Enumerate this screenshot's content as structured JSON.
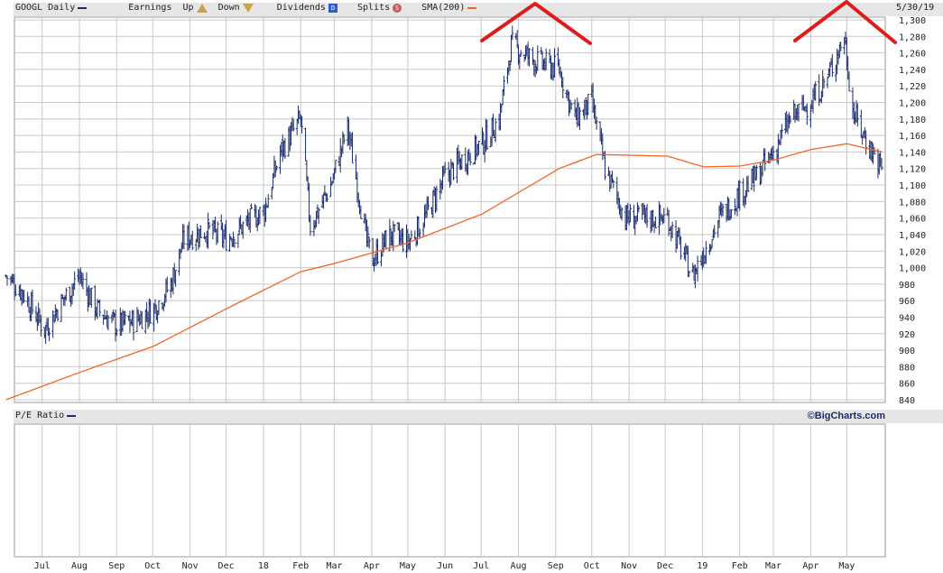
{
  "header": {
    "symbol": "GOOGL Daily",
    "earnings_label": "Earnings",
    "up_label": "Up",
    "down_label": "Down",
    "dividends_label": "Dividends",
    "splits_label": "Splits",
    "sma_label": "SMA(200)",
    "date": "5/30/19",
    "up_icon": "up-triangle-icon",
    "down_icon": "down-triangle-icon",
    "dividend_icon": "D",
    "split_icon": "S"
  },
  "pe_panel": {
    "label": "P/E Ratio"
  },
  "credit": "©BigCharts.com",
  "colors": {
    "price": "#1b2c6b",
    "sma": "#f26522",
    "annotation": "#e01b1b",
    "grid": "#c8c8c8",
    "header_bg": "#e6e6e6"
  },
  "chart_data": {
    "type": "line",
    "title": "GOOGL Daily",
    "ylim": [
      840,
      1300
    ],
    "yticks": [
      840,
      860,
      880,
      900,
      920,
      940,
      960,
      980,
      1000,
      1020,
      1040,
      1060,
      1080,
      1100,
      1120,
      1140,
      1160,
      1180,
      1200,
      1220,
      1240,
      1260,
      1280,
      1300
    ],
    "ytick_labels": [
      "840",
      "860",
      "880",
      "900",
      "920",
      "940",
      "960",
      "980",
      "1,000",
      "1,020",
      "1,040",
      "1,060",
      "1,080",
      "1,100",
      "1,120",
      "1,140",
      "1,160",
      "1,180",
      "1,200",
      "1,220",
      "1,240",
      "1,260",
      "1,280",
      "1,300"
    ],
    "x_labels": [
      "Jul",
      "Aug",
      "Sep",
      "Oct",
      "Nov",
      "Dec",
      "18",
      "Feb",
      "Mar",
      "Apr",
      "May",
      "Jun",
      "Jul",
      "Aug",
      "Sep",
      "Oct",
      "Nov",
      "Dec",
      "19",
      "Feb",
      "Mar",
      "Apr",
      "May"
    ],
    "series": [
      {
        "name": "GOOGL Daily",
        "style": "ohlc",
        "dates": [
          "2017-06-01",
          "2017-06-15",
          "2017-07-03",
          "2017-07-18",
          "2017-08-01",
          "2017-08-15",
          "2017-09-01",
          "2017-09-15",
          "2017-10-02",
          "2017-10-16",
          "2017-10-27",
          "2017-11-15",
          "2017-12-01",
          "2017-12-15",
          "2018-01-02",
          "2018-01-15",
          "2018-02-01",
          "2018-02-09",
          "2018-02-26",
          "2018-03-12",
          "2018-03-28",
          "2018-04-02",
          "2018-04-16",
          "2018-05-01",
          "2018-05-15",
          "2018-06-01",
          "2018-06-15",
          "2018-07-02",
          "2018-07-16",
          "2018-07-26",
          "2018-08-15",
          "2018-09-04",
          "2018-09-17",
          "2018-10-01",
          "2018-10-12",
          "2018-10-29",
          "2018-11-15",
          "2018-12-03",
          "2018-12-24",
          "2019-01-15",
          "2019-02-01",
          "2019-02-15",
          "2019-03-01",
          "2019-03-15",
          "2019-04-01",
          "2019-04-15",
          "2019-04-29",
          "2019-05-06",
          "2019-05-15",
          "2019-05-30"
        ],
        "close": [
          990,
          970,
          925,
          960,
          990,
          950,
          930,
          935,
          950,
          980,
          1035,
          1045,
          1035,
          1050,
          1070,
          1140,
          1180,
          1050,
          1100,
          1170,
          1030,
          1010,
          1040,
          1030,
          1060,
          1110,
          1130,
          1150,
          1180,
          1270,
          1250,
          1240,
          1180,
          1200,
          1120,
          1060,
          1060,
          1060,
          990,
          1060,
          1090,
          1110,
          1140,
          1180,
          1200,
          1230,
          1280,
          1190,
          1160,
          1120
        ]
      },
      {
        "name": "SMA(200)",
        "dates": [
          "2017-06-01",
          "2017-08-01",
          "2017-10-02",
          "2017-12-01",
          "2018-02-01",
          "2018-03-01",
          "2018-05-01",
          "2018-07-02",
          "2018-09-04",
          "2018-10-05",
          "2018-12-03",
          "2019-01-02",
          "2019-02-01",
          "2019-03-01",
          "2019-04-01",
          "2019-05-01",
          "2019-05-30"
        ],
        "values": [
          840,
          873,
          905,
          950,
          995,
          1005,
          1030,
          1065,
          1120,
          1137,
          1135,
          1122,
          1123,
          1130,
          1143,
          1150,
          1140
        ]
      }
    ],
    "annotations": [
      "hand-drawn peak marker near Aug 2018 high",
      "hand-drawn peak marker near May 2019 high"
    ]
  }
}
